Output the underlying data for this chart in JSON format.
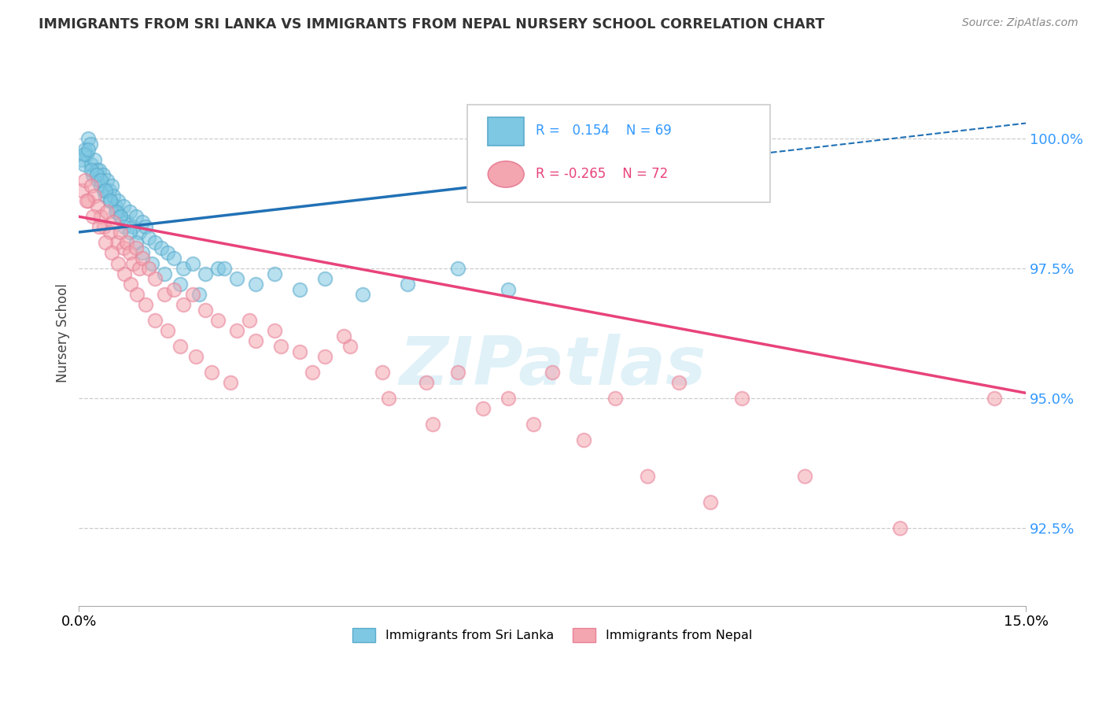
{
  "title": "IMMIGRANTS FROM SRI LANKA VS IMMIGRANTS FROM NEPAL NURSERY SCHOOL CORRELATION CHART",
  "source": "Source: ZipAtlas.com",
  "ylabel": "Nursery School",
  "xlim": [
    0.0,
    15.0
  ],
  "ylim": [
    91.0,
    101.5
  ],
  "yticks": [
    92.5,
    95.0,
    97.5,
    100.0
  ],
  "ytick_labels": [
    "92.5%",
    "95.0%",
    "97.5%",
    "100.0%"
  ],
  "xticks": [
    0.0,
    15.0
  ],
  "xtick_labels": [
    "0.0%",
    "15.0%"
  ],
  "sri_lanka_color": "#7ec8e3",
  "nepal_color": "#f4a6b0",
  "sri_lanka_edge": "#5aabcc",
  "nepal_edge": "#e88097",
  "sri_lanka_R": 0.154,
  "sri_lanka_N": 69,
  "nepal_R": -0.265,
  "nepal_N": 72,
  "trend_sl_x0": 0.0,
  "trend_sl_y0": 98.2,
  "trend_sl_x1": 15.0,
  "trend_sl_y1": 100.3,
  "trend_np_x0": 0.0,
  "trend_np_y0": 98.5,
  "trend_np_x1": 15.0,
  "trend_np_y1": 95.1,
  "sl_line_color": "#2171b5",
  "np_line_color": "#e8437a",
  "watermark": "ZIPatlas",
  "sri_lanka_scatter_x": [
    0.05,
    0.08,
    0.1,
    0.12,
    0.15,
    0.18,
    0.2,
    0.22,
    0.25,
    0.28,
    0.3,
    0.32,
    0.35,
    0.38,
    0.4,
    0.42,
    0.45,
    0.48,
    0.5,
    0.52,
    0.55,
    0.58,
    0.6,
    0.62,
    0.65,
    0.7,
    0.75,
    0.8,
    0.85,
    0.9,
    0.95,
    1.0,
    1.05,
    1.1,
    1.2,
    1.3,
    1.4,
    1.5,
    1.65,
    1.8,
    2.0,
    2.2,
    2.5,
    2.8,
    3.1,
    3.5,
    3.9,
    4.5,
    5.2,
    6.0,
    6.8,
    0.08,
    0.15,
    0.2,
    0.28,
    0.35,
    0.42,
    0.5,
    0.58,
    0.65,
    0.72,
    0.8,
    0.9,
    1.0,
    1.15,
    1.35,
    1.6,
    1.9,
    2.3
  ],
  "sri_lanka_scatter_y": [
    99.6,
    99.5,
    99.8,
    99.7,
    100.0,
    99.9,
    99.5,
    99.3,
    99.6,
    99.4,
    99.2,
    99.4,
    99.1,
    99.3,
    99.0,
    98.9,
    99.2,
    99.0,
    98.8,
    99.1,
    98.9,
    98.7,
    98.6,
    98.8,
    98.5,
    98.7,
    98.4,
    98.6,
    98.3,
    98.5,
    98.2,
    98.4,
    98.3,
    98.1,
    98.0,
    97.9,
    97.8,
    97.7,
    97.5,
    97.6,
    97.4,
    97.5,
    97.3,
    97.2,
    97.4,
    97.1,
    97.3,
    97.0,
    97.2,
    97.5,
    97.1,
    99.7,
    99.8,
    99.4,
    99.3,
    99.2,
    99.0,
    98.8,
    98.6,
    98.5,
    98.3,
    98.2,
    98.0,
    97.8,
    97.6,
    97.4,
    97.2,
    97.0,
    97.5
  ],
  "nepal_scatter_x": [
    0.05,
    0.1,
    0.15,
    0.2,
    0.25,
    0.3,
    0.35,
    0.4,
    0.45,
    0.5,
    0.55,
    0.6,
    0.65,
    0.7,
    0.75,
    0.8,
    0.85,
    0.9,
    0.95,
    1.0,
    1.1,
    1.2,
    1.35,
    1.5,
    1.65,
    1.8,
    2.0,
    2.2,
    2.5,
    2.8,
    3.1,
    3.5,
    3.9,
    4.3,
    4.8,
    5.5,
    6.0,
    6.8,
    7.5,
    8.5,
    9.5,
    10.5,
    14.5,
    0.12,
    0.22,
    0.32,
    0.42,
    0.52,
    0.62,
    0.72,
    0.82,
    0.92,
    1.05,
    1.2,
    1.4,
    1.6,
    1.85,
    2.1,
    2.4,
    2.7,
    3.2,
    3.7,
    4.2,
    4.9,
    5.6,
    6.4,
    7.2,
    8.0,
    9.0,
    10.0,
    11.5,
    13.0
  ],
  "nepal_scatter_y": [
    99.0,
    99.2,
    98.8,
    99.1,
    98.9,
    98.7,
    98.5,
    98.3,
    98.6,
    98.2,
    98.4,
    98.0,
    98.2,
    97.9,
    98.0,
    97.8,
    97.6,
    97.9,
    97.5,
    97.7,
    97.5,
    97.3,
    97.0,
    97.1,
    96.8,
    97.0,
    96.7,
    96.5,
    96.3,
    96.1,
    96.3,
    95.9,
    95.8,
    96.0,
    95.5,
    95.3,
    95.5,
    95.0,
    95.5,
    95.0,
    95.3,
    95.0,
    95.0,
    98.8,
    98.5,
    98.3,
    98.0,
    97.8,
    97.6,
    97.4,
    97.2,
    97.0,
    96.8,
    96.5,
    96.3,
    96.0,
    95.8,
    95.5,
    95.3,
    96.5,
    96.0,
    95.5,
    96.2,
    95.0,
    94.5,
    94.8,
    94.5,
    94.2,
    93.5,
    93.0,
    93.5,
    92.5
  ]
}
